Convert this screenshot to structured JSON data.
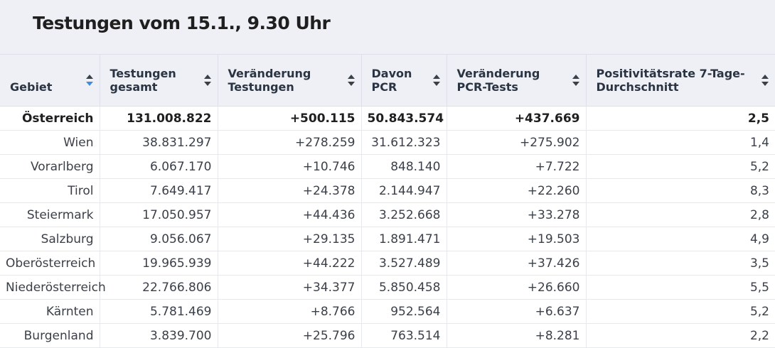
{
  "title": "Testungen vom 15.1., 9.30 Uhr",
  "columns": [
    {
      "label": "Gebiet"
    },
    {
      "label": "Testungen gesamt"
    },
    {
      "label": "Veränderung Testungen"
    },
    {
      "label": "Davon PCR"
    },
    {
      "label": "Veränderung PCR-Tests"
    },
    {
      "label": "Positivitätsrate 7-Tage-Durchschnitt"
    }
  ],
  "rows": [
    [
      "Österreich",
      "131.008.822",
      "+500.115",
      "50.843.574",
      "+437.669",
      "2,5"
    ],
    [
      "Wien",
      "38.831.297",
      "+278.259",
      "31.612.323",
      "+275.902",
      "1,4"
    ],
    [
      "Vorarlberg",
      "6.067.170",
      "+10.746",
      "848.140",
      "+7.722",
      "5,2"
    ],
    [
      "Tirol",
      "7.649.417",
      "+24.378",
      "2.144.947",
      "+22.260",
      "8,3"
    ],
    [
      "Steiermark",
      "17.050.957",
      "+44.436",
      "3.252.668",
      "+33.278",
      "2,8"
    ],
    [
      "Salzburg",
      "9.056.067",
      "+29.135",
      "1.891.471",
      "+19.503",
      "4,9"
    ],
    [
      "Oberösterreich",
      "19.965.939",
      "+44.222",
      "3.527.489",
      "+37.426",
      "3,5"
    ],
    [
      "Niederösterreich",
      "22.766.806",
      "+34.377",
      "5.850.458",
      "+26.660",
      "5,5"
    ],
    [
      "Kärnten",
      "5.781.469",
      "+8.766",
      "952.564",
      "+6.637",
      "5,2"
    ],
    [
      "Burgenland",
      "3.839.700",
      "+25.796",
      "763.514",
      "+8.281",
      "2,2"
    ]
  ],
  "sort": {
    "active_column": 0,
    "direction": "descending",
    "active_color": "#3d8ee0",
    "inactive_color": "#3b3f47"
  },
  "icons": {
    "sort": "sort-arrows-icon"
  }
}
